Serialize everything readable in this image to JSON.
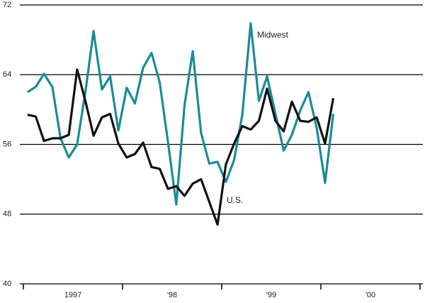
{
  "chart_data": {
    "type": "line",
    "x": [
      1997.042,
      1997.125,
      1997.208,
      1997.292,
      1997.375,
      1997.458,
      1997.542,
      1997.625,
      1997.708,
      1997.792,
      1997.875,
      1997.958,
      1998.042,
      1998.125,
      1998.208,
      1998.292,
      1998.375,
      1998.458,
      1998.542,
      1998.625,
      1998.708,
      1998.792,
      1998.875,
      1998.958,
      1999.042,
      1999.125,
      1999.208,
      1999.292,
      1999.375,
      1999.458,
      1999.542,
      1999.625,
      1999.708,
      1999.792,
      1999.875,
      1999.958,
      2000.042,
      2000.125
    ],
    "series": [
      {
        "name": "Midwest",
        "color": "#1b8a9a",
        "values": [
          62.0,
          62.6,
          64.1,
          62.6,
          56.7,
          54.5,
          56.0,
          62.0,
          69.0,
          62.3,
          63.8,
          57.6,
          62.5,
          60.7,
          64.8,
          66.5,
          63.1,
          56.3,
          49.1,
          60.5,
          66.7,
          57.3,
          53.8,
          54.0,
          51.7,
          54.2,
          59.4,
          69.9,
          61.0,
          63.8,
          59.5,
          55.3,
          57.1,
          59.9,
          62.0,
          57.9,
          51.6,
          59.5
        ]
      },
      {
        "name": "U.S.",
        "color": "#111111",
        "values": [
          59.4,
          59.2,
          56.4,
          56.7,
          56.7,
          57.1,
          64.6,
          61.0,
          57.0,
          59.1,
          59.5,
          56.1,
          54.5,
          54.9,
          56.2,
          53.4,
          53.2,
          50.9,
          51.2,
          50.1,
          51.5,
          52.0,
          49.4,
          46.8,
          53.7,
          56.1,
          58.1,
          57.7,
          58.7,
          62.4,
          58.7,
          57.5,
          60.9,
          58.7,
          58.6,
          59.1,
          56.1,
          61.3
        ]
      }
    ],
    "xlim": [
      1997,
      2001
    ],
    "xticks": [
      {
        "value": 1997.5,
        "label": "1997"
      },
      {
        "value": 1998.5,
        "label": "'98"
      },
      {
        "value": 1999.5,
        "label": "'99"
      },
      {
        "value": 2000.5,
        "label": "'00"
      }
    ],
    "x_boundaries": [
      1997,
      1998,
      1999,
      2000,
      2001
    ],
    "ylim": [
      40,
      72
    ],
    "yticks": [
      40,
      48,
      56,
      64,
      72
    ],
    "grid": true
  }
}
